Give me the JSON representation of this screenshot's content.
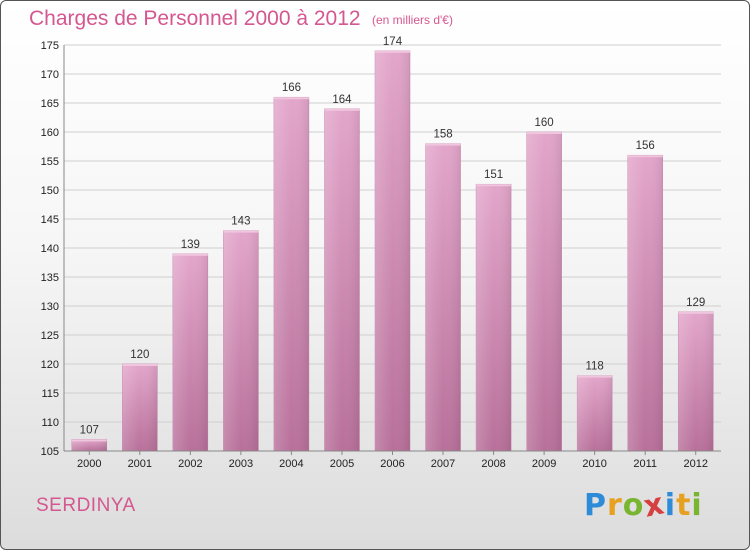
{
  "chart_data": {
    "type": "bar",
    "title": "Charges de Personnel 2000 à 2012",
    "subtitle": "(en milliers d'€)",
    "categories": [
      "2000",
      "2001",
      "2002",
      "2003",
      "2004",
      "2005",
      "2006",
      "2007",
      "2008",
      "2009",
      "2010",
      "2011",
      "2012"
    ],
    "values": [
      107,
      120,
      139,
      143,
      166,
      164,
      174,
      158,
      151,
      160,
      118,
      156,
      129
    ],
    "ylim": [
      105,
      175
    ],
    "yticks": [
      105,
      110,
      115,
      120,
      125,
      130,
      135,
      140,
      145,
      150,
      155,
      160,
      165,
      170,
      175
    ],
    "grid": true,
    "bar_color": "#d68fb8"
  },
  "commune": "SERDINYA",
  "logo": {
    "letters": [
      "P",
      "r",
      "o",
      "x",
      "i",
      "t",
      "i"
    ],
    "colors": [
      "#2e8bd8",
      "#e8a020",
      "#79b530",
      "#d64040",
      "#2e8bd8",
      "#e8a020",
      "#79b530"
    ]
  }
}
